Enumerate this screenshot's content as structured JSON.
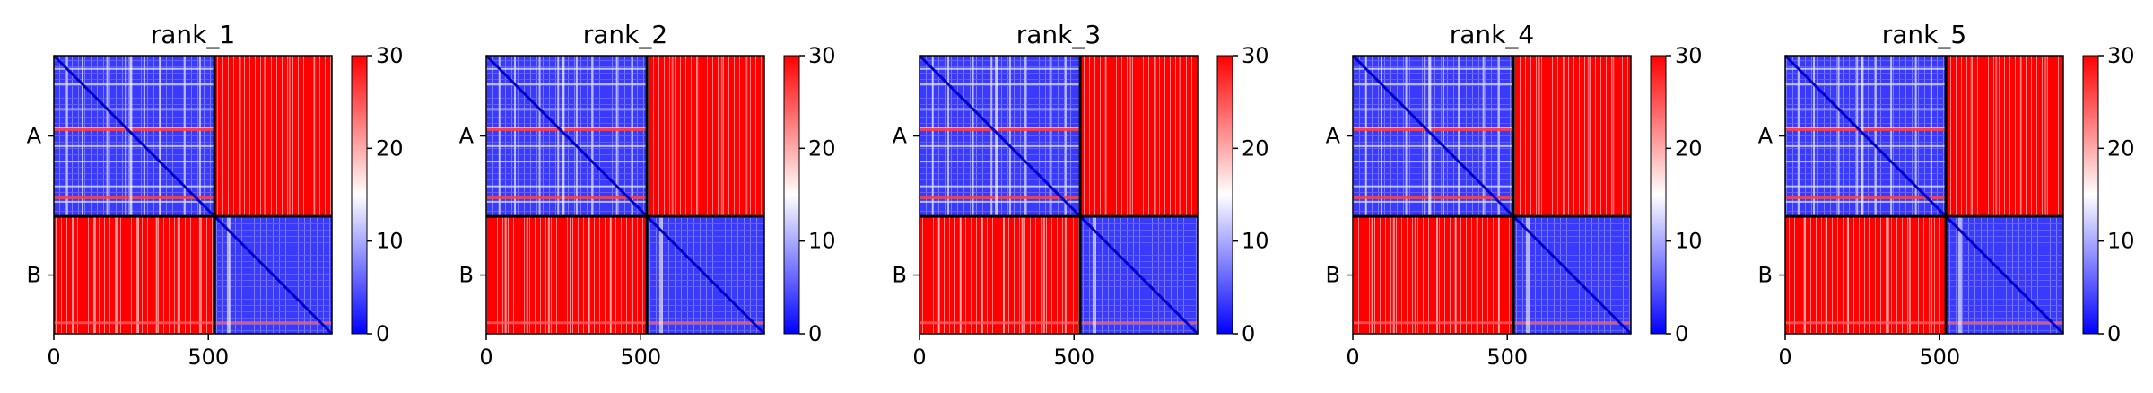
{
  "chart_data": [
    {
      "type": "heatmap",
      "title": "rank_1",
      "chains": [
        "A",
        "B"
      ],
      "chain_boundary": 520,
      "sequence_length": 900,
      "x_ticks": [
        0,
        500
      ],
      "colorbar": {
        "min": 0,
        "max": 30,
        "ticks": [
          0,
          10,
          20,
          30
        ],
        "colormap": [
          "#0000ff",
          "#ffffff",
          "#ff0000"
        ]
      }
    },
    {
      "type": "heatmap",
      "title": "rank_2",
      "chains": [
        "A",
        "B"
      ],
      "chain_boundary": 520,
      "sequence_length": 900,
      "x_ticks": [
        0,
        500
      ],
      "colorbar": {
        "min": 0,
        "max": 30,
        "ticks": [
          0,
          10,
          20,
          30
        ],
        "colormap": [
          "#0000ff",
          "#ffffff",
          "#ff0000"
        ]
      }
    },
    {
      "type": "heatmap",
      "title": "rank_3",
      "chains": [
        "A",
        "B"
      ],
      "chain_boundary": 520,
      "sequence_length": 900,
      "x_ticks": [
        0,
        500
      ],
      "colorbar": {
        "min": 0,
        "max": 30,
        "ticks": [
          0,
          10,
          20,
          30
        ],
        "colormap": [
          "#0000ff",
          "#ffffff",
          "#ff0000"
        ]
      }
    },
    {
      "type": "heatmap",
      "title": "rank_4",
      "chains": [
        "A",
        "B"
      ],
      "chain_boundary": 520,
      "sequence_length": 900,
      "x_ticks": [
        0,
        500
      ],
      "colorbar": {
        "min": 0,
        "max": 30,
        "ticks": [
          0,
          10,
          20,
          30
        ],
        "colormap": [
          "#0000ff",
          "#ffffff",
          "#ff0000"
        ]
      }
    },
    {
      "type": "heatmap",
      "title": "rank_5",
      "chains": [
        "A",
        "B"
      ],
      "chain_boundary": 520,
      "sequence_length": 900,
      "x_ticks": [
        0,
        500
      ],
      "colorbar": {
        "min": 0,
        "max": 30,
        "ticks": [
          0,
          10,
          20,
          30
        ],
        "colormap": [
          "#0000ff",
          "#ffffff",
          "#ff0000"
        ]
      }
    }
  ]
}
